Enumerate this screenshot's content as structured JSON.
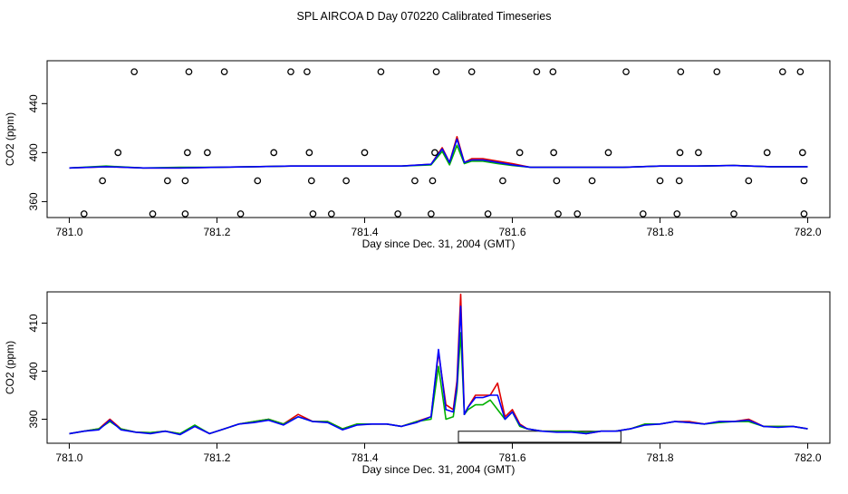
{
  "page_title": "SPL AIRCOA D  Day 070220  Calibrated Timeseries",
  "colors": {
    "red": "#e00000",
    "green": "#00b000",
    "blue": "#0000ff",
    "axis": "#000000"
  },
  "chart_data": [
    {
      "type": "line",
      "panel": "top",
      "title": "SPL AIRCOA D  Day 070220  Calibrated Timeseries",
      "xlabel": "Day since Dec. 31, 2004 (GMT)",
      "ylabel": "CO2 (ppm)",
      "xlim": [
        780.97,
        782.03
      ],
      "ylim": [
        347,
        475
      ],
      "xticks": [
        781.0,
        781.2,
        781.4,
        781.6,
        781.8,
        782.0
      ],
      "xtick_labels": [
        "781.0",
        "781.2",
        "781.4",
        "781.6",
        "781.8",
        "782.0"
      ],
      "yticks": [
        360,
        400,
        440
      ],
      "ytick_labels": [
        "360",
        "400",
        "440"
      ],
      "x": [
        781.0,
        781.05,
        781.1,
        781.15,
        781.2,
        781.25,
        781.3,
        781.35,
        781.4,
        781.45,
        781.49,
        781.505,
        781.515,
        781.525,
        781.535,
        781.545,
        781.56,
        781.58,
        781.6,
        781.625,
        781.65,
        781.7,
        781.75,
        781.8,
        781.85,
        781.9,
        781.95,
        782.0
      ],
      "series": [
        {
          "name": "red",
          "values": [
            387.5,
            388.5,
            387.5,
            387.5,
            388,
            388.5,
            389,
            389,
            389,
            389,
            390.5,
            404,
            392,
            413,
            392,
            395,
            395,
            393,
            391,
            388,
            388,
            388,
            388,
            389,
            389,
            389.5,
            388.5,
            388.5
          ]
        },
        {
          "name": "green",
          "values": [
            387.5,
            389,
            387.5,
            388,
            388,
            388.5,
            389,
            389,
            389,
            389,
            390,
            401,
            390,
            406,
            391,
            393,
            393,
            391,
            389.5,
            388,
            388,
            388,
            388,
            389,
            389,
            389.5,
            388.5,
            388.5
          ]
        },
        {
          "name": "blue",
          "values": [
            387.5,
            388.5,
            387.5,
            387.5,
            388,
            388.5,
            389,
            389,
            389,
            389,
            390.5,
            403,
            392,
            411,
            392,
            394,
            394,
            392,
            390,
            388,
            388,
            388,
            388,
            389,
            389,
            389.5,
            388.5,
            388.5
          ]
        }
      ],
      "markers": {
        "symbol": "open-circle",
        "points": [
          [
            781.02,
            350
          ],
          [
            781.113,
            350
          ],
          [
            781.157,
            350
          ],
          [
            781.232,
            350
          ],
          [
            781.33,
            350
          ],
          [
            781.355,
            350
          ],
          [
            781.445,
            350
          ],
          [
            781.49,
            350
          ],
          [
            781.567,
            350
          ],
          [
            781.662,
            350
          ],
          [
            781.688,
            350
          ],
          [
            781.777,
            350
          ],
          [
            781.823,
            350
          ],
          [
            781.9,
            350
          ],
          [
            781.995,
            350
          ],
          [
            781.045,
            377
          ],
          [
            781.133,
            377
          ],
          [
            781.157,
            377
          ],
          [
            781.255,
            377
          ],
          [
            781.328,
            377
          ],
          [
            781.375,
            377
          ],
          [
            781.468,
            377
          ],
          [
            781.492,
            377
          ],
          [
            781.587,
            377
          ],
          [
            781.66,
            377
          ],
          [
            781.708,
            377
          ],
          [
            781.8,
            377
          ],
          [
            781.826,
            377
          ],
          [
            781.92,
            377
          ],
          [
            781.995,
            377
          ],
          [
            781.066,
            400
          ],
          [
            781.16,
            400
          ],
          [
            781.187,
            400
          ],
          [
            781.277,
            400
          ],
          [
            781.325,
            400
          ],
          [
            781.4,
            400
          ],
          [
            781.495,
            400
          ],
          [
            781.61,
            400
          ],
          [
            781.656,
            400
          ],
          [
            781.73,
            400
          ],
          [
            781.827,
            400
          ],
          [
            781.852,
            400
          ],
          [
            781.945,
            400
          ],
          [
            781.993,
            400
          ],
          [
            781.088,
            466
          ],
          [
            781.162,
            466
          ],
          [
            781.21,
            466
          ],
          [
            781.3,
            466
          ],
          [
            781.322,
            466
          ],
          [
            781.422,
            466
          ],
          [
            781.497,
            466
          ],
          [
            781.545,
            466
          ],
          [
            781.633,
            466
          ],
          [
            781.655,
            466
          ],
          [
            781.754,
            466
          ],
          [
            781.828,
            466
          ],
          [
            781.877,
            466
          ],
          [
            781.966,
            466
          ],
          [
            781.99,
            466
          ]
        ]
      }
    },
    {
      "type": "line",
      "panel": "bottom",
      "xlabel": "Day since Dec. 31, 2004 (GMT)",
      "ylabel": "CO2 (ppm)",
      "xlim": [
        780.97,
        782.03
      ],
      "ylim": [
        385,
        416.5
      ],
      "xticks": [
        781.0,
        781.2,
        781.4,
        781.6,
        781.8,
        782.0
      ],
      "xtick_labels": [
        "781.0",
        "781.2",
        "781.4",
        "781.6",
        "781.8",
        "782.0"
      ],
      "yticks": [
        390,
        400,
        410
      ],
      "ytick_labels": [
        "390",
        "400",
        "410"
      ],
      "x": [
        781.0,
        781.02,
        781.04,
        781.055,
        781.07,
        781.09,
        781.11,
        781.13,
        781.15,
        781.17,
        781.19,
        781.21,
        781.23,
        781.25,
        781.27,
        781.29,
        781.31,
        781.33,
        781.35,
        781.37,
        781.39,
        781.41,
        781.43,
        781.45,
        781.47,
        781.49,
        781.5,
        781.51,
        781.52,
        781.525,
        781.53,
        781.535,
        781.54,
        781.55,
        781.56,
        781.57,
        781.58,
        781.59,
        781.6,
        781.61,
        781.62,
        781.64,
        781.66,
        781.68,
        781.7,
        781.72,
        781.74,
        781.76,
        781.78,
        781.8,
        781.82,
        781.84,
        781.86,
        781.88,
        781.9,
        781.92,
        781.94,
        781.96,
        781.98,
        782.0
      ],
      "series": [
        {
          "name": "red",
          "values": [
            387,
            387.5,
            388,
            390,
            388,
            387.3,
            387.2,
            387.5,
            387,
            388.5,
            387,
            388,
            389,
            389.5,
            390,
            389,
            391,
            389.5,
            389.5,
            388,
            389,
            389,
            389,
            388.5,
            389.5,
            390.5,
            404,
            393,
            392,
            398,
            416,
            391,
            392.5,
            395,
            395,
            395,
            397.5,
            390.5,
            392,
            389,
            388,
            387.5,
            387.5,
            387.5,
            387,
            387.5,
            387.5,
            388,
            389,
            389,
            389.5,
            389.5,
            389,
            389.5,
            389.5,
            390,
            388.5,
            388.5,
            388.5,
            388
          ]
        },
        {
          "name": "green",
          "values": [
            387,
            387.5,
            388,
            389.5,
            388,
            387.3,
            387.2,
            387.5,
            387,
            388.8,
            387,
            388,
            389,
            389.5,
            390,
            389,
            390.5,
            389.5,
            389.5,
            388,
            389,
            389,
            389,
            388.5,
            389.5,
            390,
            401,
            390,
            390.5,
            396,
            408,
            391,
            392,
            393,
            393,
            394,
            392,
            390,
            391.5,
            388.5,
            388,
            387.5,
            387.5,
            387.5,
            387.2,
            387.5,
            387.5,
            388,
            389,
            389,
            389.5,
            389.3,
            389,
            389.3,
            389.5,
            389.5,
            388.5,
            388.5,
            388.5,
            388
          ]
        },
        {
          "name": "blue",
          "values": [
            387,
            387.5,
            387.8,
            389.8,
            387.8,
            387.3,
            387,
            387.5,
            386.8,
            388.5,
            387,
            388,
            389,
            389.3,
            389.8,
            388.8,
            390.5,
            389.5,
            389.3,
            387.8,
            388.8,
            389,
            389,
            388.5,
            389.3,
            390.5,
            404.5,
            392,
            391.5,
            397,
            413.5,
            391,
            392.5,
            394.5,
            394.5,
            395,
            395,
            390,
            391.5,
            388.8,
            388,
            387.5,
            387.3,
            387.3,
            387,
            387.5,
            387.5,
            388,
            388.8,
            389,
            389.5,
            389.3,
            389,
            389.5,
            389.5,
            389.8,
            388.5,
            388.3,
            388.5,
            388
          ]
        }
      ],
      "annotation_box": {
        "x_range": [
          781.527,
          781.747
        ],
        "y_range": [
          385.2,
          387.5
        ]
      }
    }
  ]
}
